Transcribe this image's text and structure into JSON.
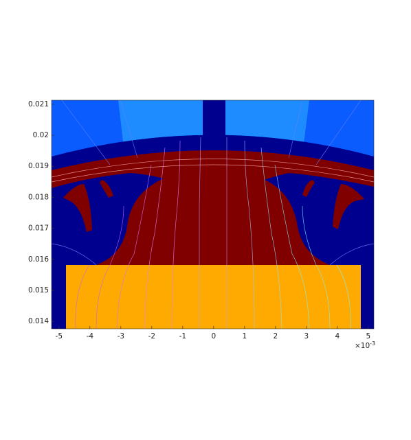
{
  "chart_data": {
    "type": "field",
    "xlim": [
      -5.24,
      5.18
    ],
    "ylim": [
      0.01376,
      0.02113
    ],
    "xticks": [
      -5,
      -4,
      -3,
      -2,
      -1,
      0,
      1,
      2,
      3,
      4,
      5
    ],
    "yticks": [
      0.014,
      0.015,
      0.016,
      0.017,
      0.018,
      0.019,
      0.02,
      0.021
    ],
    "x_multiplier": {
      "base": "×10",
      "exponent": "-3"
    }
  }
}
